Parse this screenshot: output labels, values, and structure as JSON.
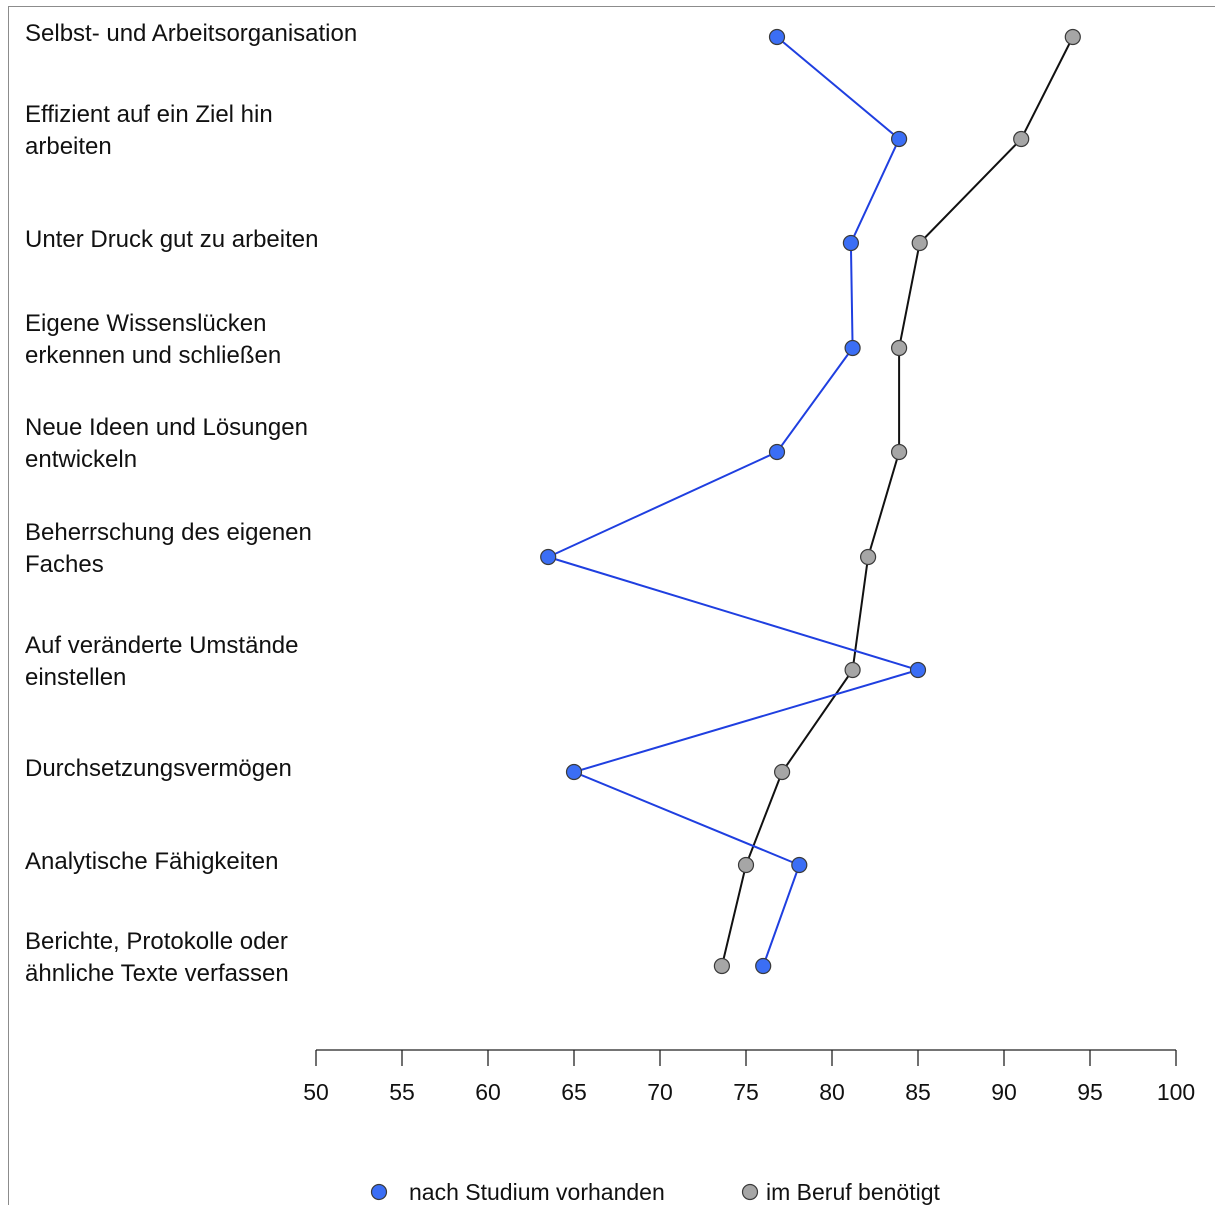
{
  "chart_data": {
    "type": "line",
    "orientation": "horizontal",
    "categories": [
      [
        "Selbst- und Arbeitsorganisation"
      ],
      [
        "Effizient auf ein Ziel hin",
        "arbeiten"
      ],
      [
        "Unter Druck gut zu arbeiten"
      ],
      [
        "Eigene Wissenslücken",
        "erkennen und schließen"
      ],
      [
        "Neue Ideen und Lösungen",
        "entwickeln"
      ],
      [
        "Beherrschung des eigenen",
        "Faches"
      ],
      [
        "Auf veränderte Umstände",
        "einstellen"
      ],
      [
        "Durchsetzungsvermögen"
      ],
      [
        "Analytische Fähigkeiten"
      ],
      [
        "Berichte, Protokolle oder",
        "ähnliche Texte verfassen"
      ]
    ],
    "series": [
      {
        "name": "nach Studium vorhanden",
        "color": "#3b6ef5",
        "line_color": "#1f3fe0",
        "values": [
          76.8,
          83.9,
          81.1,
          81.2,
          76.8,
          63.5,
          85.0,
          65.0,
          78.1,
          76.0
        ]
      },
      {
        "name": "im Beruf benötigt",
        "color": "#a6a6a6",
        "line_color": "#111111",
        "values": [
          94.0,
          91.0,
          85.1,
          83.9,
          83.9,
          82.1,
          81.2,
          77.1,
          75.0,
          73.6
        ]
      }
    ],
    "xlim": [
      50,
      100
    ],
    "xticks": [
      50,
      55,
      60,
      65,
      70,
      75,
      80,
      85,
      90,
      95,
      100
    ],
    "legend_position": "bottom",
    "grid": false
  }
}
